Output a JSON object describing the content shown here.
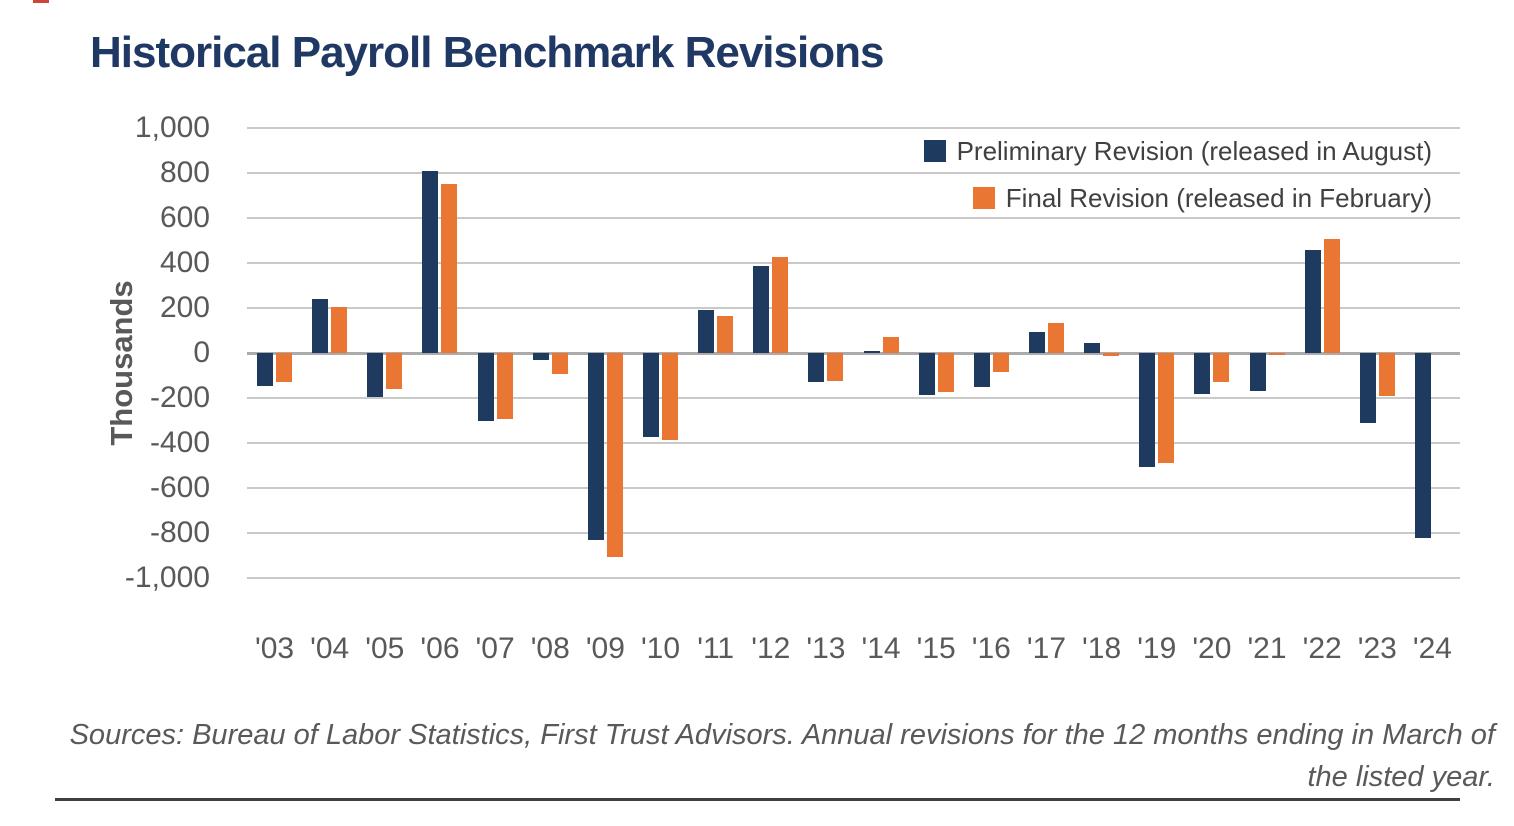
{
  "page": {
    "title": "Historical Payroll Benchmark Revisions",
    "source_note": "Sources: Bureau of Labor Statistics, First Trust Advisors. Annual revisions for the 12 months ending in March of the listed year."
  },
  "chart_data": {
    "type": "bar",
    "title": "Historical Payroll Benchmark Revisions",
    "xlabel": "",
    "ylabel": "Thousands",
    "unit": "thousands of payroll jobs",
    "ylim": [
      -1000,
      1000
    ],
    "ytick_step": 200,
    "grid": true,
    "legend_position": "top-right",
    "categories": [
      "'03",
      "'04",
      "'05",
      "'06",
      "'07",
      "'08",
      "'09",
      "'10",
      "'11",
      "'12",
      "'13",
      "'14",
      "'15",
      "'16",
      "'17",
      "'18",
      "'19",
      "'20",
      "'21",
      "'22",
      "'23",
      "'24"
    ],
    "series": [
      {
        "name": "Preliminary Revision (released in August)",
        "color": "#1e3a5f",
        "values": [
          -145,
          240,
          -195,
          810,
          -300,
          -30,
          -830,
          -375,
          190,
          385,
          -130,
          10,
          -185,
          -150,
          95,
          45,
          -505,
          -180,
          -170,
          460,
          -310,
          -820
        ]
      },
      {
        "name": "Final Revision (released in February)",
        "color": "#e97733",
        "values": [
          -130,
          205,
          -160,
          750,
          -295,
          -95,
          -905,
          -385,
          165,
          425,
          -125,
          70,
          -175,
          -85,
          135,
          -15,
          -490,
          -130,
          -10,
          505,
          -190,
          null
        ]
      }
    ]
  },
  "colors": {
    "title": "#1f3864",
    "preliminary": "#1e3a5f",
    "final": "#e97733",
    "axis_text": "#595959",
    "legend_text": "#404040",
    "gridline": "#c9c9c9",
    "zero_line": "#ababab",
    "bottom_rule": "#404040"
  }
}
